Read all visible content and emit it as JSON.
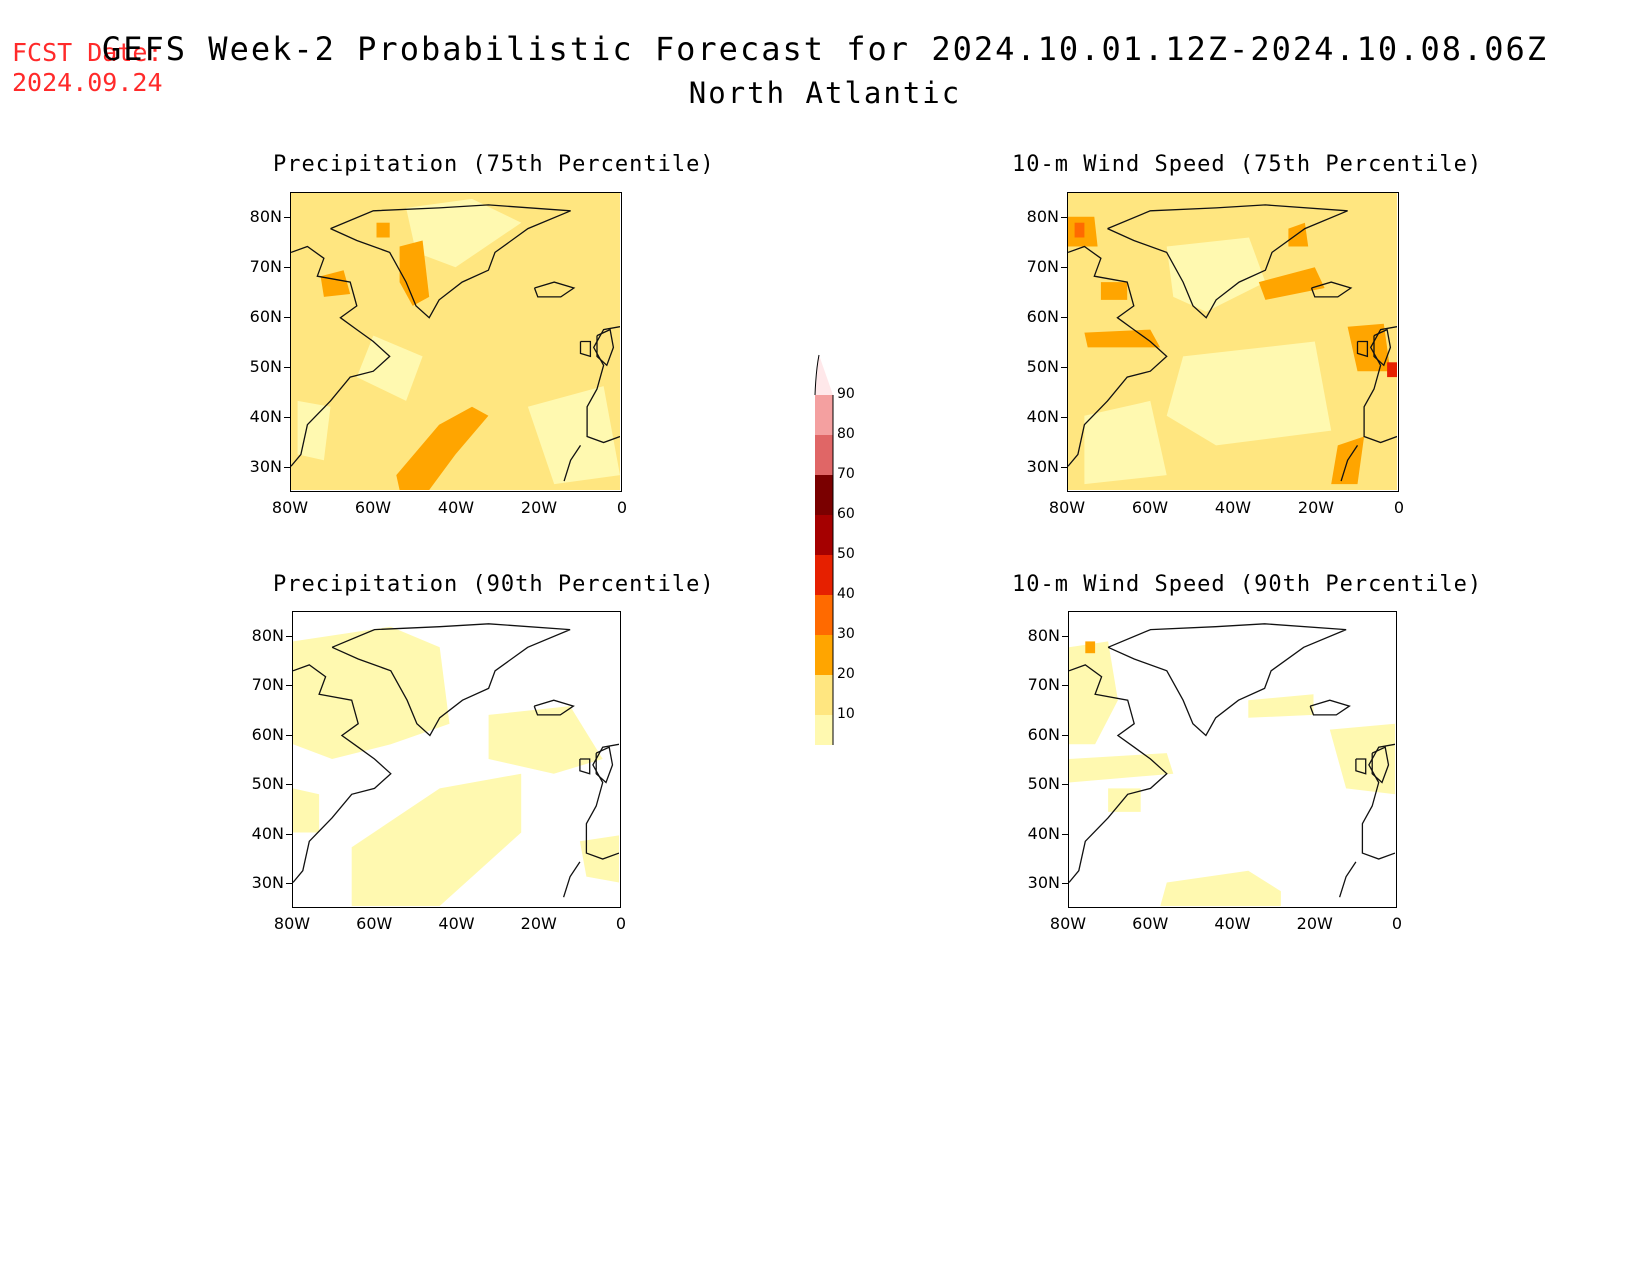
{
  "header": {
    "fcst_label": "FCST Date:",
    "fcst_date": "2024.09.24",
    "title": "GEFS Week-2 Probabilistic Forecast for 2024.10.01.12Z-2024.10.08.06Z",
    "subtitle": "North Atlantic"
  },
  "panels": [
    {
      "title": "Precipitation (75th Percentile)",
      "fill": "moderate",
      "highlights": "precip75"
    },
    {
      "title": "10-m Wind Speed (75th Percentile)",
      "fill": "moderate",
      "highlights": "wind75"
    },
    {
      "title": "Precipitation (90th Percentile)",
      "fill": "sparse",
      "highlights": "precip90"
    },
    {
      "title": "10-m Wind Speed (90th Percentile)",
      "fill": "sparse",
      "highlights": "wind90"
    }
  ],
  "axes": {
    "lat_labels": [
      "80N",
      "70N",
      "60N",
      "50N",
      "40N",
      "30N"
    ],
    "lon_labels": [
      "80W",
      "60W",
      "40W",
      "20W",
      "0"
    ]
  },
  "colorbar": {
    "levels": [
      "10",
      "20",
      "30",
      "40",
      "50",
      "60",
      "70",
      "80",
      "90"
    ],
    "colors": [
      "#fff9b0",
      "#ffe680",
      "#ffa500",
      "#ff6a00",
      "#e62000",
      "#a50000",
      "#7a0000",
      "#e06666",
      "#f4a0a0",
      "#ffe8ea"
    ]
  }
}
